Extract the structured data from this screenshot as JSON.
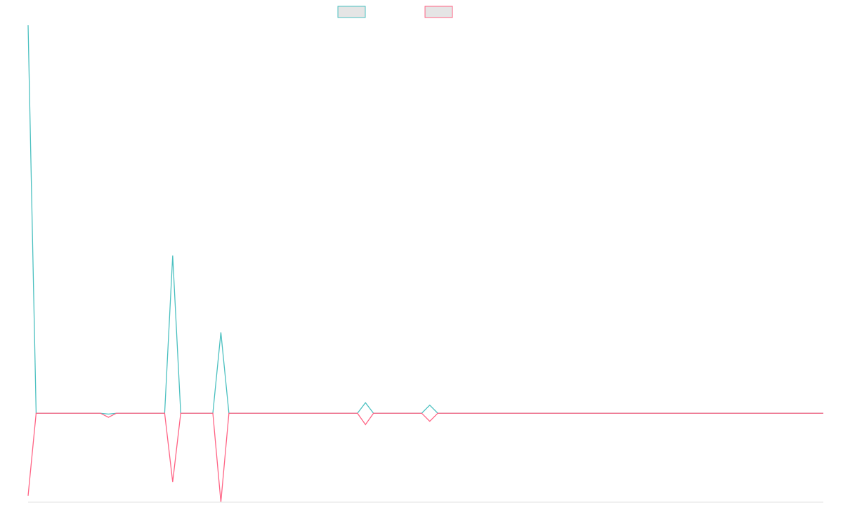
{
  "chart_data": {
    "type": "line",
    "legend_position": "top-center",
    "grid": false,
    "x_count": 100,
    "ylim": [
      -1.1,
      4.8
    ],
    "colors": {
      "series1": "#4bc0c0",
      "series2": "#ff6384",
      "legend_fill": "#e5e5e5",
      "axis": "#e0e0e0"
    },
    "series": [
      {
        "color_key": "series1",
        "values": [
          4.8,
          0,
          0,
          0,
          0,
          0,
          0,
          0,
          0,
          0,
          -0.01,
          0,
          0,
          0,
          0,
          0,
          0,
          0,
          1.95,
          0,
          0,
          0,
          0,
          0,
          1.0,
          0,
          0,
          0,
          0,
          0,
          0,
          0,
          0,
          0,
          0,
          0,
          0,
          0,
          0,
          0,
          0,
          0,
          0.13,
          0,
          0,
          0,
          0,
          0,
          0,
          0,
          0.1,
          0,
          0,
          0,
          0,
          0,
          0,
          0,
          0,
          0,
          0,
          0,
          0,
          0,
          0,
          0,
          0,
          0,
          0,
          0,
          0,
          0,
          0,
          0,
          0,
          0,
          0,
          0,
          0,
          0,
          0,
          0,
          0,
          0,
          0,
          0,
          0,
          0,
          0,
          0,
          0,
          0,
          0,
          0,
          0,
          0,
          0,
          0,
          0,
          0
        ]
      },
      {
        "color_key": "series2",
        "values": [
          -1.02,
          0,
          0,
          0,
          0,
          0,
          0,
          0,
          0,
          0,
          -0.05,
          0,
          0,
          0,
          0,
          0,
          0,
          0,
          -0.85,
          0,
          0,
          0,
          0,
          0,
          -1.1,
          0,
          0,
          0,
          0,
          0,
          0,
          0,
          0,
          0,
          0,
          0,
          0,
          0,
          0,
          0,
          0,
          0,
          -0.14,
          0,
          0,
          0,
          0,
          0,
          0,
          0,
          -0.1,
          0,
          0,
          0,
          0,
          0,
          0,
          0,
          0,
          0,
          0,
          0,
          0,
          0,
          0,
          0,
          0,
          0,
          0,
          0,
          0,
          0,
          0,
          0,
          0,
          0,
          0,
          0,
          0,
          0,
          0,
          0,
          0,
          0,
          0,
          0,
          0,
          0,
          0,
          0,
          0,
          0,
          0,
          0,
          0,
          0,
          0,
          0,
          0,
          0
        ]
      }
    ]
  }
}
